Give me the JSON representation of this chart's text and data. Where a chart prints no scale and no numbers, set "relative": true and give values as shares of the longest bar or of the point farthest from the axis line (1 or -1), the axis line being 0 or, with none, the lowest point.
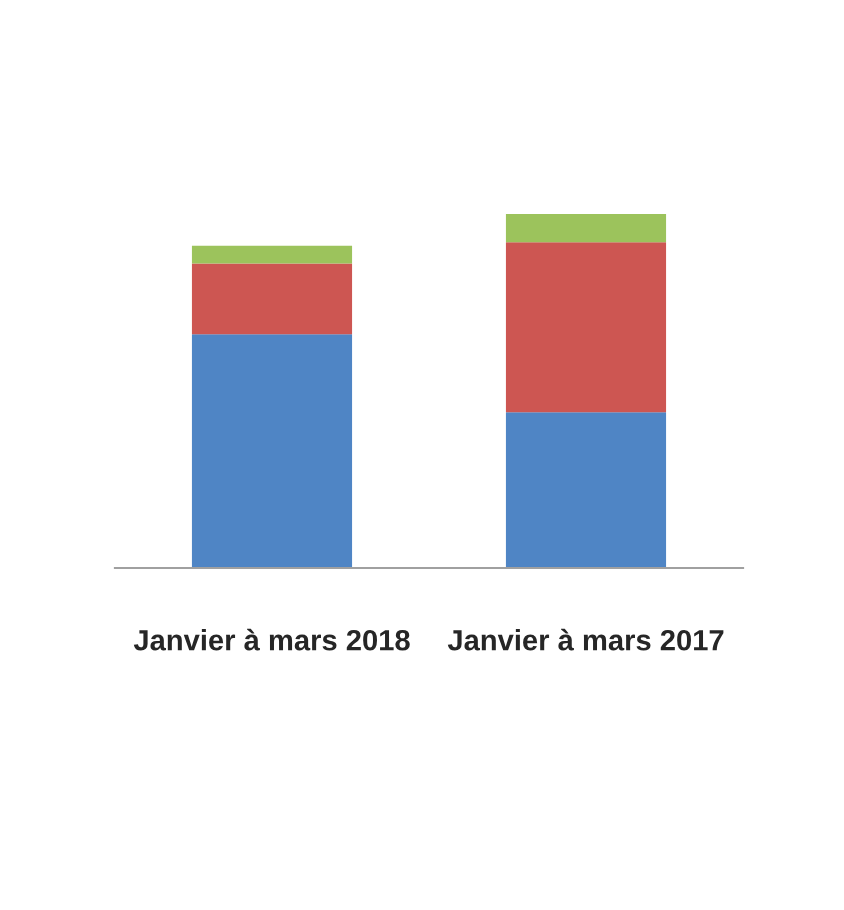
{
  "chart_data": {
    "type": "bar",
    "stacked": true,
    "relative": true,
    "categories": [
      "Janvier à mars 2018",
      "Janvier à mars 2017"
    ],
    "series": [
      {
        "color": "#4f85c5",
        "values": [
          0.66,
          0.44
        ]
      },
      {
        "color": "#cd5652",
        "values": [
          0.2,
          0.48
        ]
      },
      {
        "color": "#9cc35c",
        "values": [
          0.05,
          0.08
        ]
      }
    ]
  }
}
